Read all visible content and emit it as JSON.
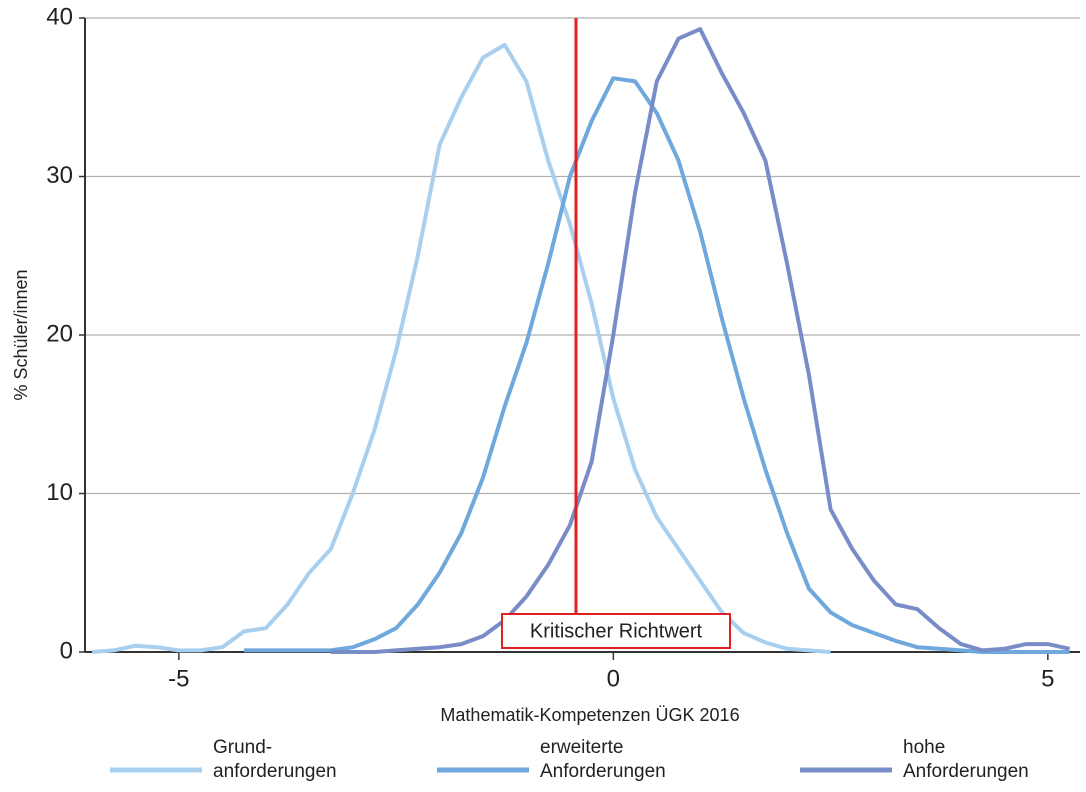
{
  "chart_data": {
    "type": "line",
    "xlabel": "Mathematik-Kompetenzen ÜGK 2016",
    "ylabel": "% Schüler/innen",
    "x": [
      -6,
      -5.75,
      -5.5,
      -5.25,
      -5,
      -4.75,
      -4.5,
      -4.25,
      -4,
      -3.75,
      -3.5,
      -3.25,
      -3,
      -2.75,
      -2.5,
      -2.25,
      -2,
      -1.75,
      -1.5,
      -1.25,
      -1,
      -0.75,
      -0.5,
      -0.25,
      0,
      0.25,
      0.5,
      0.75,
      1,
      1.25,
      1.5,
      1.75,
      2,
      2.25,
      2.5,
      2.75,
      3,
      3.25,
      3.5,
      3.75,
      4,
      4.25,
      4.5,
      4.75,
      5,
      5.25
    ],
    "series": [
      {
        "name": "Grund-\nanforderungen",
        "color": "#a9cfee",
        "values": [
          0,
          0.1,
          0.4,
          0.3,
          0.1,
          0.1,
          0.3,
          1.3,
          1.5,
          3,
          5,
          6.5,
          10,
          14,
          19,
          25,
          32,
          35,
          37.5,
          38.3,
          36,
          31,
          27,
          22,
          16,
          11.5,
          8.5,
          6.5,
          4.5,
          2.5,
          1.2,
          0.6,
          0.2,
          0.1,
          0,
          null,
          null,
          null,
          null,
          null,
          null,
          null,
          null,
          null,
          null,
          null
        ]
      },
      {
        "name": "erweiterte\nAnforderungen",
        "color": "#6fa8dc",
        "values": [
          null,
          null,
          null,
          null,
          null,
          null,
          null,
          0.1,
          0.1,
          0.1,
          0.1,
          0.1,
          0.3,
          0.8,
          1.5,
          3,
          5,
          7.5,
          11,
          15.5,
          19.5,
          24.5,
          30,
          33.5,
          36.2,
          36,
          34,
          31,
          26.5,
          21,
          16,
          11.5,
          7.5,
          4,
          2.5,
          1.7,
          1.2,
          0.7,
          0.3,
          0.2,
          0.1,
          0,
          0,
          0,
          0,
          0
        ]
      },
      {
        "name": "hohe\nAnforderungen",
        "color": "#7a8cc8",
        "values": [
          null,
          null,
          null,
          null,
          null,
          null,
          null,
          null,
          null,
          null,
          null,
          0,
          0,
          0,
          0.1,
          0.2,
          0.3,
          0.5,
          1,
          2,
          3.5,
          5.5,
          8,
          12,
          20,
          29,
          36,
          38.7,
          39.3,
          36.5,
          34,
          31,
          24.5,
          17.5,
          9,
          6.5,
          4.5,
          3,
          2.7,
          1.5,
          0.5,
          0.1,
          0.2,
          0.5,
          0.5,
          0.2
        ]
      }
    ],
    "threshold": {
      "label": "Kritischer Richtwert",
      "x": -0.43,
      "color": "#e02020"
    },
    "xlim": [
      -6.08,
      5.37
    ],
    "ylim": [
      0,
      40
    ],
    "xticks": [
      -5,
      0,
      5
    ],
    "yticks": [
      0,
      10,
      20,
      30,
      40
    ],
    "grid": true,
    "legend": "bottom"
  }
}
